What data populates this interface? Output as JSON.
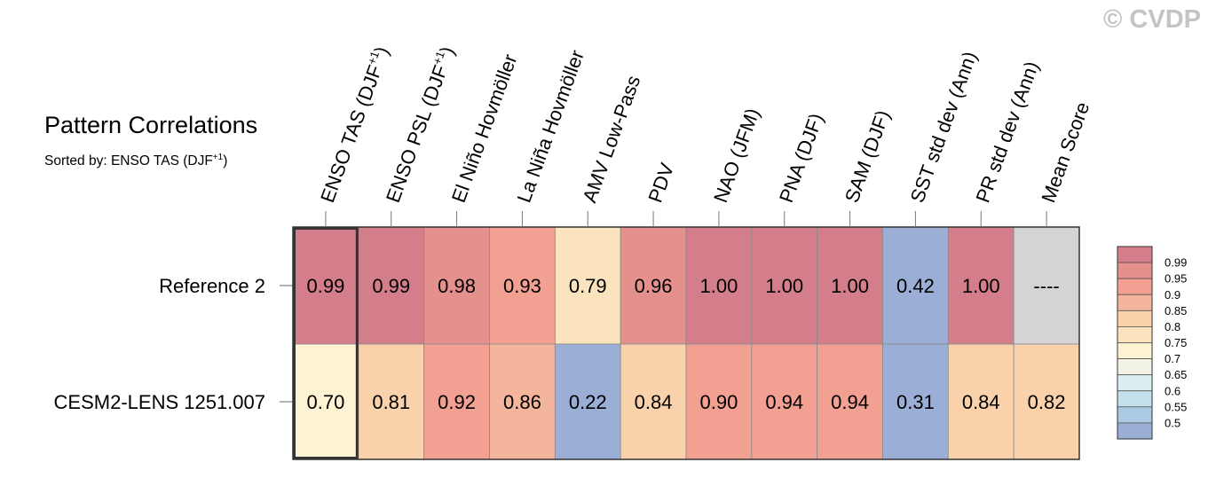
{
  "title": "Pattern Correlations",
  "subtitle": "Sorted by: ENSO TAS (DJF",
  "subtitle_sup": "+1",
  "subtitle_end": ")",
  "watermark": "© CVDP",
  "chart_data": {
    "type": "heatmap",
    "columns": [
      {
        "label": "ENSO TAS (DJF",
        "sup": "+1",
        "end": ")"
      },
      {
        "label": "ENSO PSL (DJF",
        "sup": "+1",
        "end": ")"
      },
      {
        "label": "El Niño Hovmöller"
      },
      {
        "label": "La Niña Hovmöller"
      },
      {
        "label": "AMV Low-Pass"
      },
      {
        "label": "PDV"
      },
      {
        "label": "NAO (JFM)"
      },
      {
        "label": "PNA (DJF)"
      },
      {
        "label": "SAM (DJF)"
      },
      {
        "label": "SST std dev (Ann)"
      },
      {
        "label": "PR std dev (Ann)"
      },
      {
        "label": "Mean Score"
      }
    ],
    "rows": [
      {
        "name": "Reference 2",
        "values": [
          0.99,
          0.99,
          0.98,
          0.93,
          0.79,
          0.96,
          1.0,
          1.0,
          1.0,
          0.42,
          1.0,
          null
        ],
        "labels": [
          "0.99",
          "0.99",
          "0.98",
          "0.93",
          "0.79",
          "0.96",
          "1.00",
          "1.00",
          "1.00",
          "0.42",
          "1.00",
          "----"
        ]
      },
      {
        "name": "CESM2-LENS 1251.007",
        "values": [
          0.7,
          0.81,
          0.92,
          0.86,
          0.22,
          0.84,
          0.9,
          0.94,
          0.94,
          0.31,
          0.84,
          0.82
        ],
        "labels": [
          "0.70",
          "0.81",
          "0.92",
          "0.86",
          "0.22",
          "0.84",
          "0.90",
          "0.94",
          "0.94",
          "0.31",
          "0.84",
          "0.82"
        ]
      }
    ],
    "highlighted_column": 0,
    "missing_color": "#d4d4d4",
    "colorbar": {
      "labels": [
        "0.99",
        "0.95",
        "0.9",
        "0.85",
        "0.8",
        "0.75",
        "0.7",
        "0.65",
        "0.6",
        "0.55",
        "0.5"
      ],
      "colors": [
        "#d47d8b",
        "#e4908d",
        "#f1a092",
        "#f4b59d",
        "#f9d2ab",
        "#fbe4bd",
        "#fdf2d2",
        "#f2f2e6",
        "#dbeef2",
        "#c3e0ec",
        "#aac9e2",
        "#9baed6"
      ]
    }
  }
}
